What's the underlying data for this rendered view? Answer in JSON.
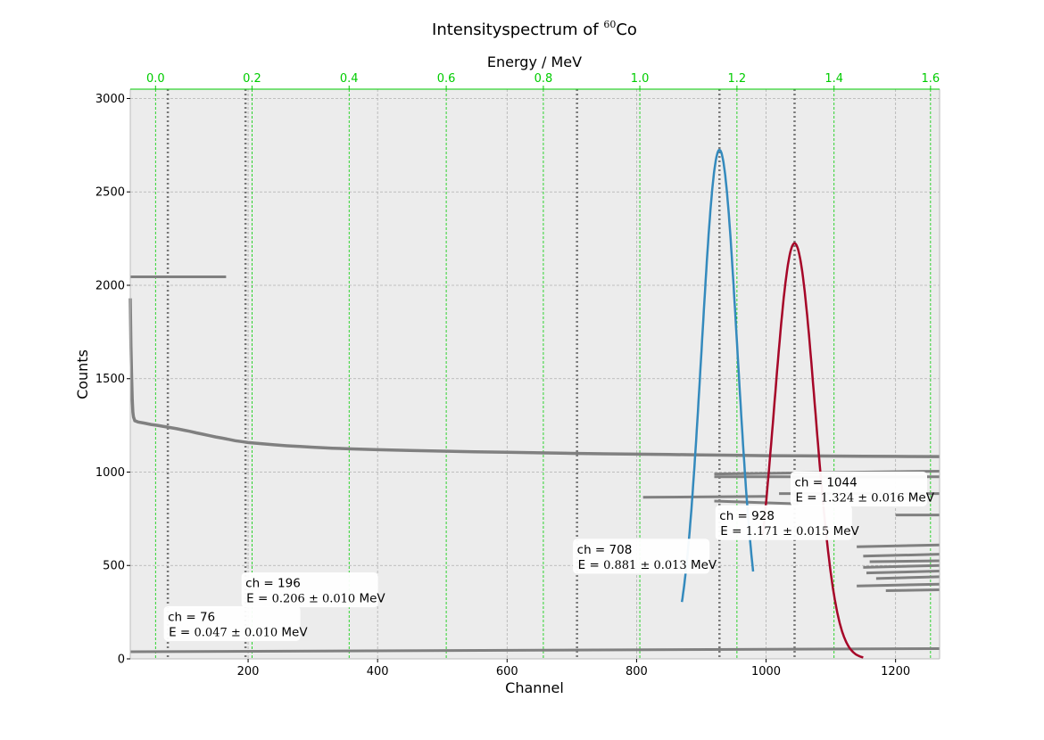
{
  "chart_data": {
    "type": "line",
    "title": "Intensityspectrum of ",
    "title_super": "60",
    "title_suffix": "Co",
    "xlabel": "Channel",
    "ylabel": "Counts",
    "x2label": "Energy / MeV",
    "xlim": [
      18,
      1268
    ],
    "ylim": [
      0,
      3050
    ],
    "x_ticks": [
      200,
      400,
      600,
      800,
      1000,
      1200
    ],
    "y_ticks": [
      0,
      500,
      1000,
      1500,
      2000,
      2500,
      3000
    ],
    "x2_ticks": [
      {
        "label": "0.0",
        "channel": 57
      },
      {
        "label": "0.2",
        "channel": 206
      },
      {
        "label": "0.4",
        "channel": 356
      },
      {
        "label": "0.6",
        "channel": 506
      },
      {
        "label": "0.8",
        "channel": 656
      },
      {
        "label": "1.0",
        "channel": 805
      },
      {
        "label": "1.2",
        "channel": 955
      },
      {
        "label": "1.4",
        "channel": 1105
      },
      {
        "label": "1.6",
        "channel": 1254
      }
    ],
    "grid": true,
    "background": "#ececec",
    "colors": {
      "data": "#808080",
      "fit1": "#348abd",
      "fit2": "#a60628",
      "energy_axis": "#00cc00",
      "marker": "#777777",
      "grid": "#b0b0b0"
    },
    "series": [
      {
        "x": [
          18,
          19,
          20,
          21,
          22,
          23,
          25,
          30,
          40,
          50,
          60,
          70,
          80,
          90,
          100,
          110,
          120,
          130,
          140,
          150,
          160,
          170,
          180,
          190,
          200,
          220,
          240,
          260,
          280,
          300,
          330,
          360,
          400,
          450,
          500,
          550,
          600,
          650,
          700,
          750,
          800,
          850,
          900,
          950,
          1000,
          1050,
          1100,
          1150,
          1200,
          1268
        ],
        "y": [
          1930,
          1680,
          1510,
          1390,
          1320,
          1295,
          1275,
          1268,
          1262,
          1255,
          1250,
          1244,
          1238,
          1232,
          1225,
          1218,
          1210,
          1203,
          1195,
          1188,
          1182,
          1175,
          1168,
          1163,
          1158,
          1152,
          1146,
          1141,
          1137,
          1133,
          1128,
          1124,
          1120,
          1116,
          1112,
          1109,
          1106,
          1103,
          1100,
          1098,
          1096,
          1094,
          1092,
          1090,
          1088,
          1087,
          1086,
          1085,
          1084,
          1083
        ]
      },
      {
        "name": "",
        "style": "gaussian",
        "x_range": [
          870,
          980
        ],
        "amplitude": 2725,
        "mean": 928,
        "sigma": 27.7
      },
      {
        "name": "",
        "style": "gaussian",
        "x_range": [
          995,
          1150
        ],
        "amplitude": 2225,
        "mean": 1044,
        "sigma": 31.5
      }
    ],
    "markers": [
      76,
      196,
      708,
      928,
      1044
    ],
    "annotations": [
      {
        "ch_line": "ch = 76",
        "e_line": "E  = ",
        "e_math": "0.047 ± 0.010",
        "unit": " MeV",
        "x": 76,
        "y": 70
      },
      {
        "ch_line": "ch = 196",
        "e_line": "E  = ",
        "e_math": "0.206 ± 0.010",
        "unit": " MeV",
        "x": 196,
        "y": 250
      },
      {
        "ch_line": "ch = 708",
        "e_line": "E  = ",
        "e_math": "0.881 ± 0.013",
        "unit": " MeV",
        "x": 708,
        "y": 430
      },
      {
        "ch_line": "ch = 928",
        "e_line": "E  = ",
        "e_math": "1.171 ± 0.015",
        "unit": " MeV",
        "x": 928,
        "y": 610
      },
      {
        "ch_line": "ch = 1044",
        "e_line": "E  = ",
        "e_math": "1.324 ± 0.016",
        "unit": " MeV",
        "x": 1044,
        "y": 790
      }
    ],
    "extra_segments": [
      {
        "x": [
          18,
          166
        ],
        "y": [
          2045,
          2045
        ]
      },
      {
        "x": [
          18,
          1268
        ],
        "y": [
          38,
          55
        ]
      },
      {
        "x": [
          920,
          1268
        ],
        "y": [
          990,
          1005
        ]
      },
      {
        "x": [
          920,
          1268
        ],
        "y": [
          975,
          975
        ]
      },
      {
        "x": [
          810,
          1000
        ],
        "y": [
          865,
          870
        ]
      },
      {
        "x": [
          920,
          1050
        ],
        "y": [
          845,
          830
        ]
      },
      {
        "x": [
          1020,
          1268
        ],
        "y": [
          885,
          885
        ]
      },
      {
        "x": [
          1200,
          1268
        ],
        "y": [
          770,
          770
        ]
      },
      {
        "x": [
          1140,
          1268
        ],
        "y": [
          600,
          610
        ]
      },
      {
        "x": [
          1150,
          1268
        ],
        "y": [
          550,
          560
        ]
      },
      {
        "x": [
          1160,
          1268
        ],
        "y": [
          520,
          525
        ]
      },
      {
        "x": [
          1150,
          1268
        ],
        "y": [
          490,
          500
        ]
      },
      {
        "x": [
          1155,
          1268
        ],
        "y": [
          460,
          470
        ]
      },
      {
        "x": [
          1170,
          1268
        ],
        "y": [
          430,
          440
        ]
      },
      {
        "x": [
          1140,
          1268
        ],
        "y": [
          390,
          400
        ]
      },
      {
        "x": [
          1185,
          1268
        ],
        "y": [
          365,
          370
        ]
      }
    ]
  }
}
